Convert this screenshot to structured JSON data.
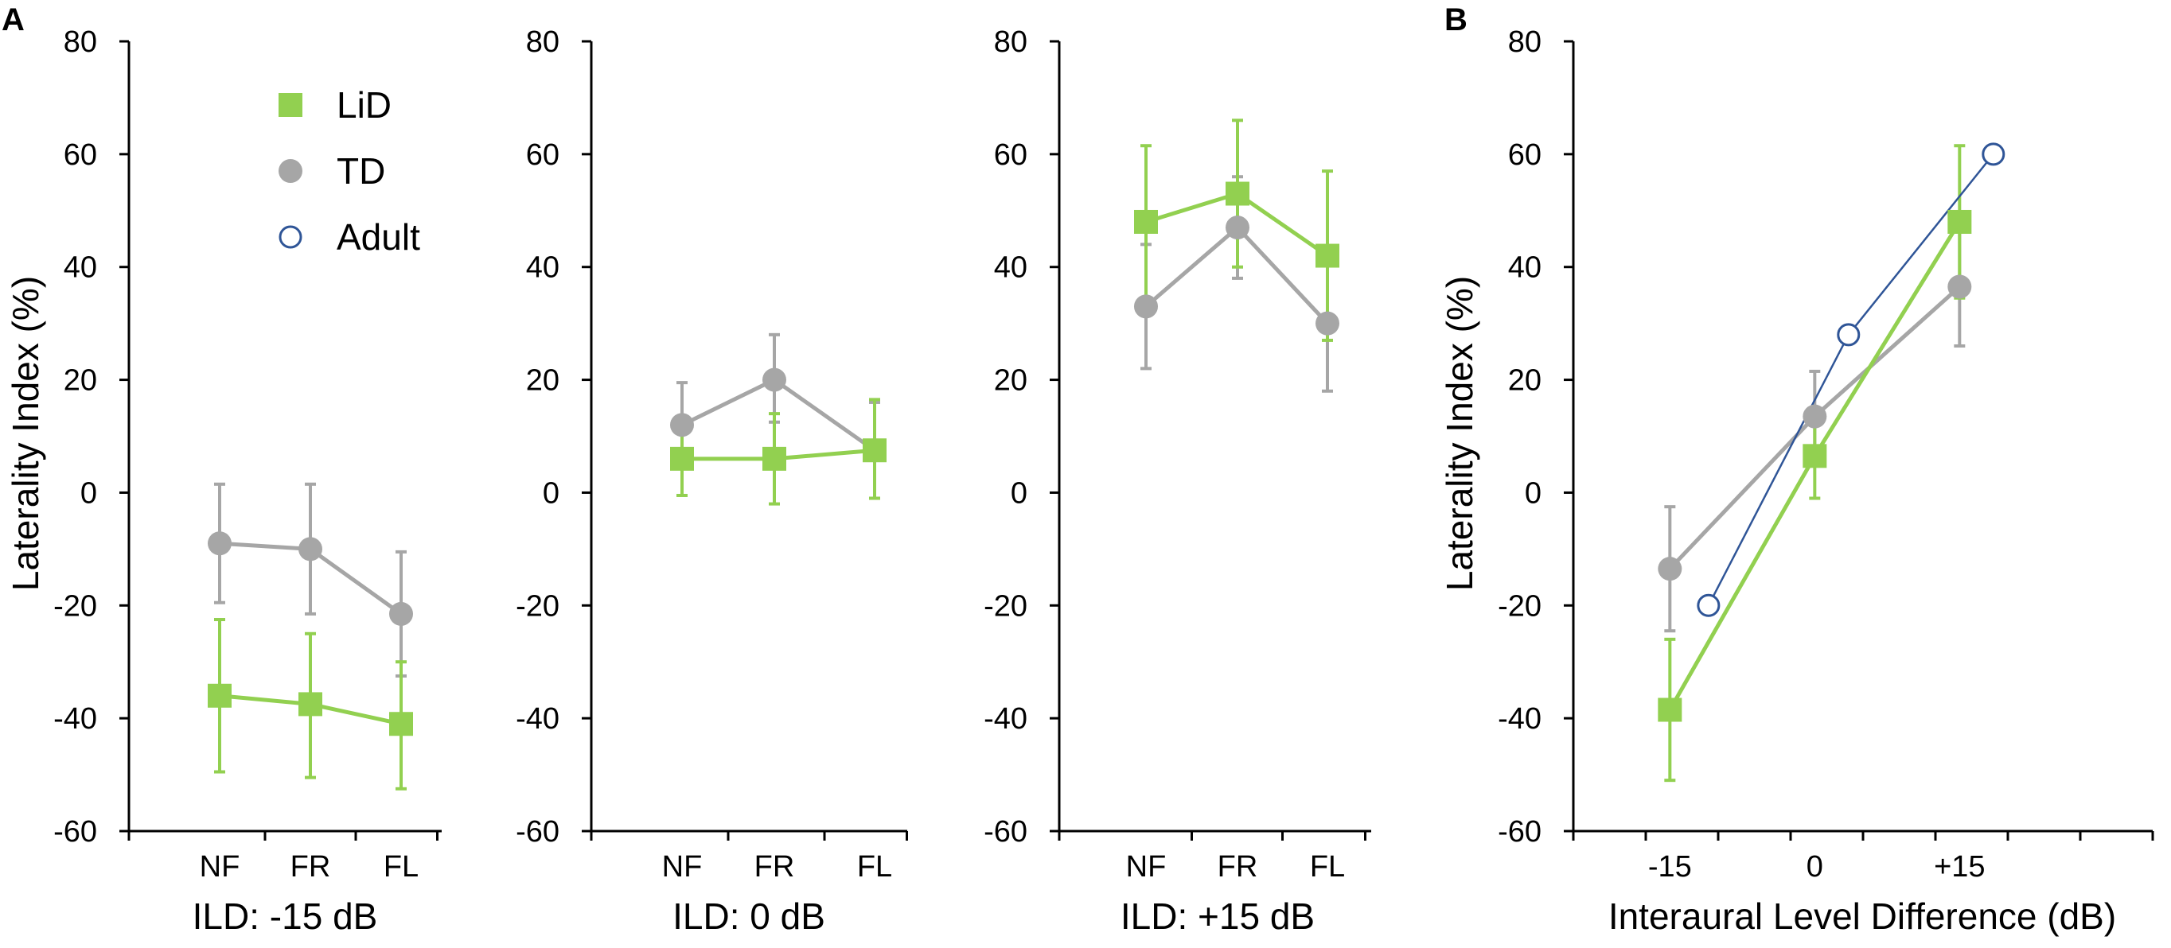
{
  "panel_labels": {
    "a": "A",
    "b": "B"
  },
  "legend": [
    {
      "key": "LiD",
      "label": "LiD",
      "marker": "filled-square",
      "color": "#92d050"
    },
    {
      "key": "TD",
      "label": "TD",
      "marker": "filled-circle",
      "color": "#a6a6a6"
    },
    {
      "key": "Adult",
      "label": "Adult",
      "marker": "open-circle",
      "color": "#2f5597"
    }
  ],
  "colors": {
    "LiD": "#92d050",
    "TD": "#a6a6a6",
    "Adult": "#2f5597",
    "axis": "#000000"
  },
  "chart_data": [
    {
      "id": "a1",
      "type": "line",
      "panel": "A",
      "title": "",
      "xlabel": "ILD: -15 dB",
      "ylabel": "Laterality Index (%)",
      "ylim": [
        -60,
        80
      ],
      "yticks": [
        80,
        60,
        40,
        20,
        0,
        -20,
        -40,
        -60
      ],
      "ytick_labels": [
        "80",
        "60",
        "40",
        "20",
        "0",
        "-20",
        "-40",
        "-60"
      ],
      "categories": [
        "NF",
        "FR",
        "FL"
      ],
      "series": [
        {
          "name": "TD",
          "values": [
            -9,
            -10,
            -21.5
          ],
          "err_up": [
            10.5,
            11.5,
            11
          ],
          "err_down": [
            10.5,
            11.5,
            11
          ]
        },
        {
          "name": "LiD",
          "values": [
            -36,
            -37.5,
            -41
          ],
          "err_up": [
            13.5,
            12.5,
            11
          ],
          "err_down": [
            13.5,
            13,
            11.5
          ]
        }
      ]
    },
    {
      "id": "a2",
      "type": "line",
      "panel": "A",
      "title": "",
      "xlabel": "ILD: 0 dB",
      "ylabel": "",
      "ylim": [
        -60,
        80
      ],
      "yticks": [
        80,
        60,
        40,
        20,
        0,
        -20,
        -40,
        -60
      ],
      "ytick_labels": [
        "80",
        "60",
        "40",
        "20",
        "0",
        "-20",
        "-40",
        "-60"
      ],
      "categories": [
        "NF",
        "FR",
        "FL"
      ],
      "series": [
        {
          "name": "TD",
          "values": [
            12,
            20,
            7.5
          ],
          "err_up": [
            7.5,
            8,
            8.5
          ],
          "err_down": [
            7.5,
            7.5,
            8.5
          ]
        },
        {
          "name": "LiD",
          "values": [
            6,
            6,
            7.5
          ],
          "err_up": [
            6,
            8,
            9
          ],
          "err_down": [
            6.5,
            8,
            8.5
          ]
        }
      ]
    },
    {
      "id": "a3",
      "type": "line",
      "panel": "A",
      "title": "",
      "xlabel": "ILD: +15 dB",
      "ylabel": "",
      "ylim": [
        -60,
        80
      ],
      "yticks": [
        80,
        60,
        40,
        20,
        0,
        -20,
        -40,
        -60
      ],
      "ytick_labels": [
        "80",
        "60",
        "40",
        "20",
        "0",
        "-20",
        "-40",
        "-60"
      ],
      "categories": [
        "NF",
        "FR",
        "FL"
      ],
      "series": [
        {
          "name": "TD",
          "values": [
            33,
            47,
            30
          ],
          "err_up": [
            11,
            9,
            11
          ],
          "err_down": [
            11,
            9,
            12
          ]
        },
        {
          "name": "LiD",
          "values": [
            48,
            53,
            42
          ],
          "err_up": [
            13.5,
            13,
            15
          ],
          "err_down": [
            13.5,
            13,
            15
          ]
        }
      ]
    },
    {
      "id": "b",
      "type": "line",
      "panel": "B",
      "title": "",
      "xlabel": "Interaural Level Difference (dB)",
      "ylabel": "Laterality Index (%)",
      "ylim": [
        -60,
        80
      ],
      "xlim": [
        -25,
        35
      ],
      "yticks": [
        80,
        60,
        40,
        20,
        0,
        -20,
        -40,
        -60
      ],
      "ytick_labels": [
        "80",
        "60",
        "40",
        "20",
        "0",
        "-20",
        "-40",
        "-60"
      ],
      "xticks": [
        -15,
        0,
        15
      ],
      "xtick_labels": [
        "-15",
        "0",
        "+15"
      ],
      "series": [
        {
          "name": "TD",
          "x": [
            -15,
            0,
            15
          ],
          "values": [
            -13.5,
            13.5,
            36.5
          ],
          "err_up": [
            11,
            8,
            10.5
          ],
          "err_down": [
            11,
            8,
            10.5
          ]
        },
        {
          "name": "LiD",
          "x": [
            -15,
            0,
            15
          ],
          "values": [
            -38.5,
            6.5,
            48
          ],
          "err_up": [
            12.5,
            7.5,
            13.5
          ],
          "err_down": [
            12.5,
            7.5,
            13.5
          ]
        },
        {
          "name": "Adult",
          "x": [
            -11,
            3.5,
            18.5
          ],
          "values": [
            -20,
            28,
            60
          ]
        }
      ]
    }
  ]
}
